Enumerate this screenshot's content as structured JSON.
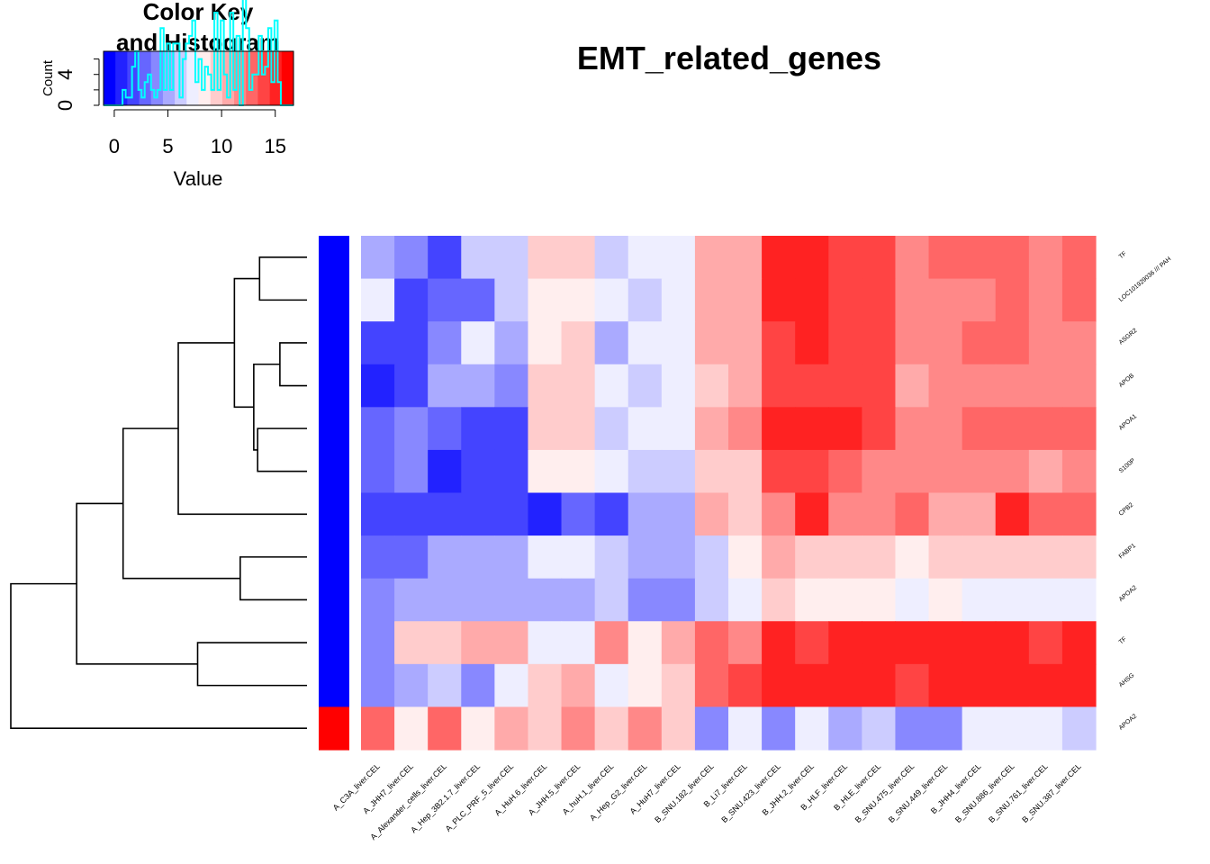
{
  "chart_data": {
    "type": "heatmap",
    "title": "EMT_related_genes",
    "columns": [
      "A_C3A_liver.CEL",
      "A_JHH7_liver.CEL",
      "A_Alexander_cells_liver.CEL",
      "A_Hep_3B2.1.7_liver.CEL",
      "A_PLC_PRF_5_liver.CEL",
      "A_HuH.6_liver.CEL",
      "A_JHH.5_liver.CEL",
      "A_huH.1_liver.CEL",
      "A_Hep_G2_liver.CEL",
      "A_HuH7_liver.CEL",
      "B_SNU.182_liver.CEL",
      "B_Li7_liver.CEL",
      "B_SNU.423_liver.CEL",
      "B_JHH.2_liver.CEL",
      "B_HLF_liver.CEL",
      "B_HLE_liver.CEL",
      "B_SNU.475_liver.CEL",
      "B_SNU.449_liver.CEL",
      "B_JHH4_liver.CEL",
      "B_SNU.886_liver.CEL",
      "B_SNU.761_liver.CEL",
      "B_SNU.387_liver.CEL"
    ],
    "rows": [
      "TF",
      "LOC101929036 /// PAH",
      "ASGR2",
      "APOB",
      "APOA1",
      "S100P",
      "CPB2",
      "FABP1",
      "APOA2",
      "TF",
      "AHSG",
      "APOA2"
    ],
    "row_side_colors": [
      "#0000ff",
      "#0000ff",
      "#0000ff",
      "#0000ff",
      "#0000ff",
      "#0000ff",
      "#0000ff",
      "#0000ff",
      "#0000ff",
      "#0000ff",
      "#0000ff",
      "#ff0000"
    ],
    "values": [
      [
        5.5,
        4.5,
        2.2,
        6.0,
        6.0,
        9.5,
        9.6,
        6.7,
        7.0,
        7.2,
        10.5,
        11.0,
        14.5,
        14.8,
        13.8,
        13.5,
        12.0,
        12.5,
        12.3,
        12.8,
        12.2,
        12.3
      ],
      [
        7.0,
        2.0,
        3.3,
        2.7,
        6.0,
        8.8,
        8.0,
        7.2,
        6.4,
        7.5,
        10.2,
        11.0,
        14.5,
        14.5,
        14.2,
        14.0,
        11.5,
        11.5,
        12.0,
        13.0,
        12.2,
        12.3
      ],
      [
        1.8,
        2.0,
        4.0,
        7.0,
        5.0,
        8.5,
        9.5,
        4.8,
        7.0,
        7.5,
        11.0,
        11.0,
        14.2,
        14.5,
        14.2,
        13.5,
        12.0,
        12.0,
        12.3,
        12.5,
        12.0,
        12.0
      ],
      [
        1.0,
        2.0,
        5.0,
        5.3,
        4.5,
        9.5,
        9.5,
        6.8,
        6.0,
        7.2,
        10.0,
        11.0,
        14.0,
        13.8,
        13.5,
        13.5,
        11.0,
        12.0,
        12.0,
        12.2,
        12.0,
        12.0
      ],
      [
        3.3,
        4.5,
        3.0,
        1.8,
        1.8,
        9.5,
        9.5,
        6.5,
        7.4,
        7.8,
        11.0,
        11.5,
        14.8,
        14.8,
        14.5,
        14.2,
        12.0,
        12.2,
        12.5,
        12.5,
        12.8,
        12.5
      ],
      [
        3.0,
        4.5,
        1.0,
        2.2,
        2.0,
        8.8,
        8.3,
        6.8,
        6.0,
        6.5,
        10.0,
        10.0,
        13.5,
        13.5,
        13.2,
        12.0,
        11.3,
        11.3,
        11.5,
        11.5,
        11.0,
        11.5
      ],
      [
        2.3,
        2.3,
        1.5,
        1.8,
        1.8,
        1.2,
        2.9,
        2.2,
        5.0,
        5.0,
        11.0,
        10.0,
        12.0,
        14.5,
        12.0,
        11.5,
        13.0,
        11.0,
        11.0,
        14.5,
        13.2,
        13.0
      ],
      [
        3.3,
        3.3,
        5.5,
        5.5,
        5.0,
        7.5,
        7.0,
        6.4,
        4.8,
        5.5,
        6.2,
        8.0,
        10.5,
        9.8,
        9.5,
        10.0,
        8.6,
        9.0,
        9.5,
        10.0,
        9.3,
        9.3
      ],
      [
        3.7,
        5.5,
        5.5,
        5.0,
        5.0,
        5.0,
        5.5,
        5.8,
        3.5,
        4.5,
        6.6,
        7.3,
        9.5,
        7.9,
        8.0,
        8.5,
        7.2,
        8.0,
        7.5,
        7.8,
        6.9,
        7.3
      ],
      [
        4.5,
        10.0,
        10.0,
        10.2,
        10.5,
        7.5,
        7.8,
        11.5,
        8.5,
        10.5,
        13.0,
        12.0,
        14.5,
        13.5,
        15.0,
        15.2,
        14.5,
        15.5,
        15.0,
        15.0,
        14.2,
        15.0
      ],
      [
        4.5,
        5.5,
        6.0,
        4.5,
        6.8,
        10.0,
        11.0,
        6.8,
        8.0,
        9.0,
        13.2,
        13.5,
        15.0,
        15.5,
        15.2,
        15.5,
        13.5,
        14.5,
        15.0,
        15.0,
        15.0,
        15.0
      ],
      [
        13.2,
        8.6,
        12.5,
        8.2,
        10.6,
        9.5,
        12.0,
        9.5,
        11.5,
        9.8,
        4.5,
        6.8,
        4.3,
        7.4,
        5.2,
        6.5,
        4.3,
        4.5,
        7.3,
        7.3,
        6.8,
        6.0
      ]
    ],
    "row_dendrogram": {
      "merges": [
        [
          -1,
          -2
        ],
        [
          -3,
          -4
        ],
        [
          -5,
          -6
        ],
        [
          2,
          3
        ],
        [
          4,
          1
        ],
        [
          5,
          -7
        ],
        [
          -8,
          -9
        ],
        [
          6,
          7
        ],
        [
          -10,
          -11
        ],
        [
          8,
          9
        ],
        [
          10,
          -12
        ]
      ],
      "heights": [
        0.49,
        0.28,
        0.51,
        0.55,
        0.75,
        1.33,
        0.69,
        1.9,
        1.13,
        2.38,
        3.06
      ],
      "order": [
        1,
        2,
        3,
        4,
        5,
        6,
        7,
        8,
        9,
        10,
        11,
        12
      ]
    },
    "color_key": {
      "title": "Color Key\nand Histogram",
      "xlabel": "Value",
      "ylabel": "Count",
      "xticks": [
        0,
        5,
        10,
        15
      ],
      "yticks": [
        0,
        4
      ],
      "range": [
        -1,
        16.7
      ],
      "colors": [
        "#0000ff",
        "#ffffff",
        "#ff0000"
      ],
      "breaks": 16,
      "histogram_color": "#00ffff"
    }
  }
}
